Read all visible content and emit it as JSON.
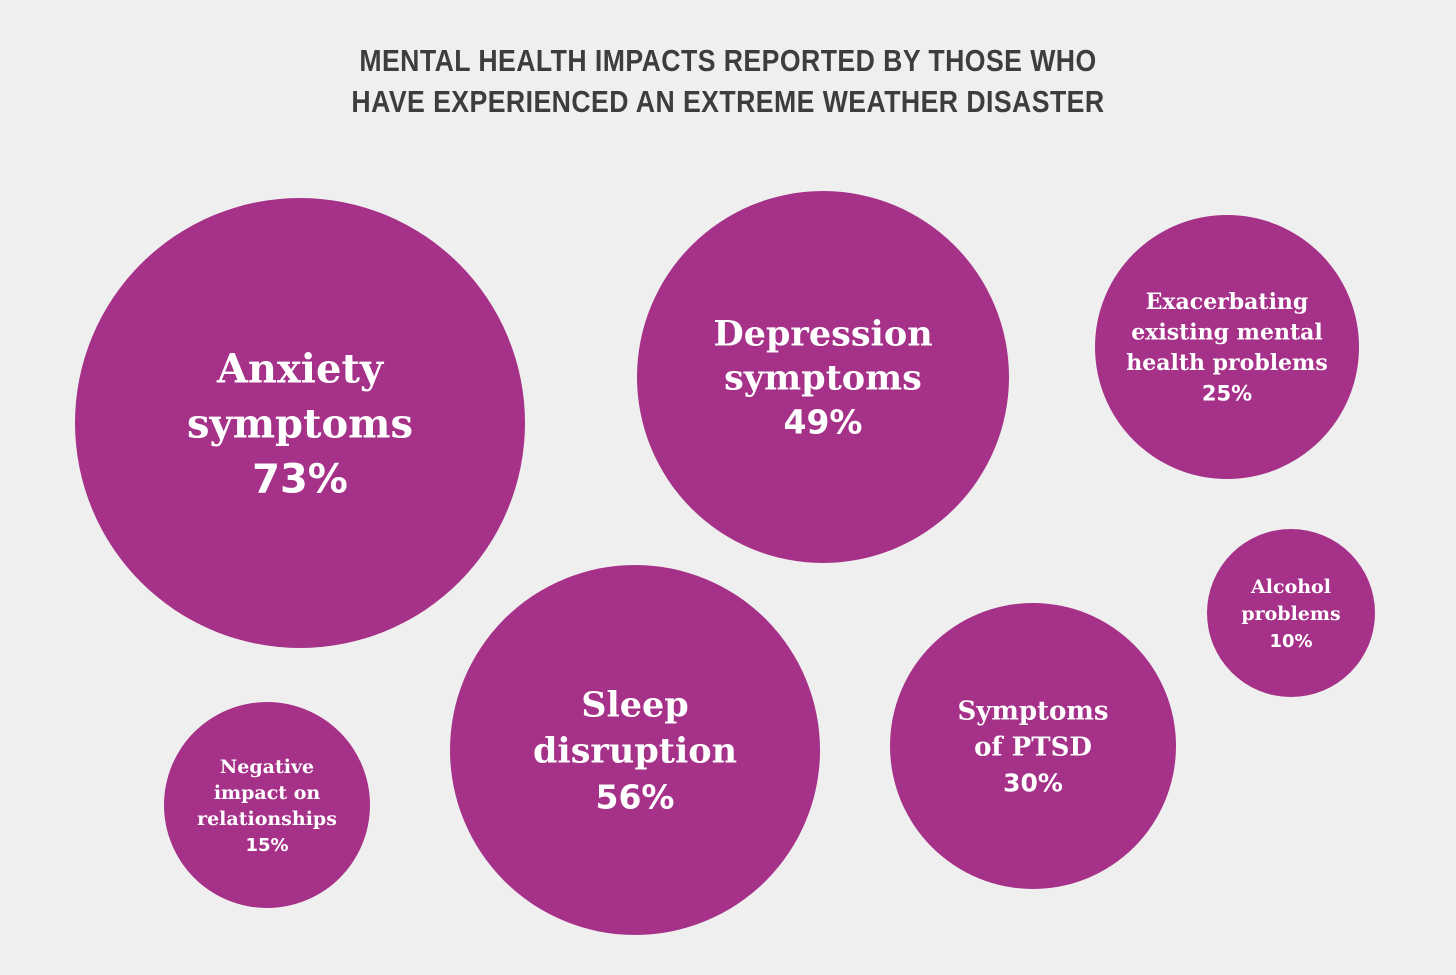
{
  "chart_data": {
    "type": "bubble",
    "title_lines": [
      "MENTAL HEALTH IMPACTS REPORTED BY THOSE WHO",
      "HAVE EXPERIENCED AN EXTREME WEATHER DISASTER"
    ],
    "unit": "%",
    "bubble_color": "#a63189",
    "background_color": "#efefef",
    "items": [
      {
        "key": "anxiety",
        "label_lines": [
          "Anxiety",
          "symptoms"
        ],
        "value_label": "73%",
        "value": 73
      },
      {
        "key": "depression",
        "label_lines": [
          "Depression",
          "symptoms"
        ],
        "value_label": "49%",
        "value": 49
      },
      {
        "key": "exacerbating",
        "label_lines": [
          "Exacerbating",
          "existing mental",
          "health problems"
        ],
        "value_label": "25%",
        "value": 25
      },
      {
        "key": "alcohol",
        "label_lines": [
          "Alcohol",
          "problems"
        ],
        "value_label": "10%",
        "value": 10
      },
      {
        "key": "relationships",
        "label_lines": [
          "Negative",
          "impact on",
          "relationships"
        ],
        "value_label": "15%",
        "value": 15
      },
      {
        "key": "sleep",
        "label_lines": [
          "Sleep",
          "disruption"
        ],
        "value_label": "56%",
        "value": 56
      },
      {
        "key": "ptsd",
        "label_lines": [
          "Symptoms",
          "of PTSD"
        ],
        "value_label": "30%",
        "value": 30
      }
    ]
  }
}
